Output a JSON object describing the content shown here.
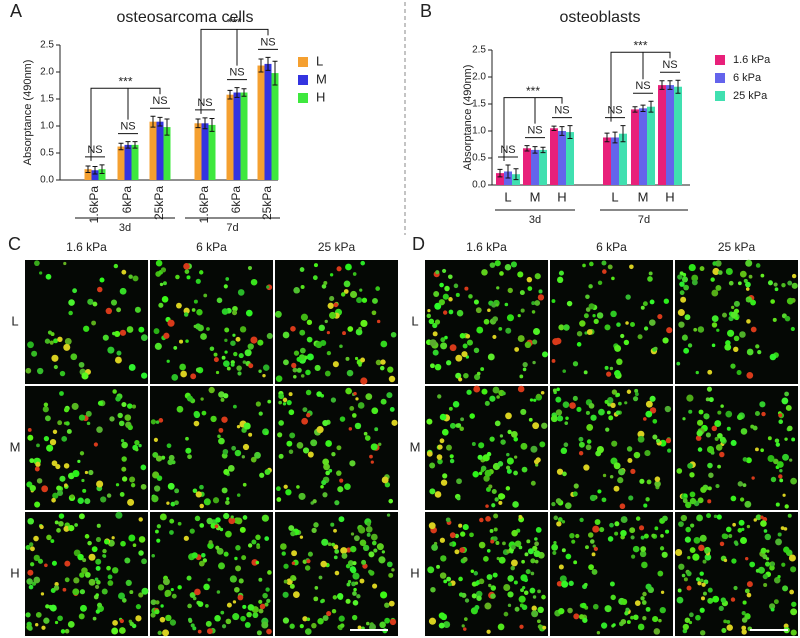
{
  "chart_data": [
    {
      "type": "bar",
      "title": "osteosarcoma cells",
      "y_label": "Absorptance (490nm)",
      "categories": [
        "1.6kPa",
        "6kPa",
        "25kPa",
        "1.6kPa",
        "6kPa",
        "25kPa"
      ],
      "category_color": "#2323c0",
      "group_labels": [
        "3d",
        "7d"
      ],
      "series": [
        {
          "name": "L",
          "color": "#f5a030",
          "values": [
            0.2,
            0.62,
            1.08,
            1.05,
            1.58,
            2.12
          ],
          "errors": [
            0.06,
            0.06,
            0.1,
            0.08,
            0.08,
            0.12
          ]
        },
        {
          "name": "M",
          "color": "#3434e0",
          "values": [
            0.18,
            0.65,
            1.08,
            1.05,
            1.62,
            2.15
          ],
          "errors": [
            0.07,
            0.06,
            0.08,
            0.1,
            0.09,
            0.12
          ]
        },
        {
          "name": "H",
          "color": "#3ee83e",
          "values": [
            0.2,
            0.65,
            0.98,
            1.02,
            1.62,
            1.98
          ],
          "errors": [
            0.08,
            0.06,
            0.15,
            0.12,
            0.07,
            0.22
          ]
        }
      ],
      "legend_text_color": "#e0208a",
      "ylim": [
        0,
        2.5
      ],
      "yticks": [
        {
          "value": 0,
          "label": "0.0"
        },
        0.5,
        {
          "value": 1,
          "label": "1.0"
        },
        1.5,
        {
          "value": 2,
          "label": "2.0"
        },
        2.5
      ],
      "annotations": [
        {
          "text": "NS",
          "at": 0
        },
        {
          "text": "NS",
          "at": 1
        },
        {
          "text": "NS",
          "at": 2
        },
        {
          "text": "NS",
          "at": 3
        },
        {
          "text": "NS",
          "at": 4
        },
        {
          "text": "NS",
          "at": 5
        },
        {
          "text": "***",
          "from": 0,
          "to": 2
        },
        {
          "text": "***",
          "from": 3,
          "to": 5
        }
      ]
    },
    {
      "type": "bar",
      "title": "osteoblasts",
      "y_label": "Absorptance (490nm)",
      "categories": [
        "L",
        "M",
        "H",
        "L",
        "M",
        "H"
      ],
      "category_color": "#e0208a",
      "group_labels": [
        "3d",
        "7d"
      ],
      "series": [
        {
          "name": "1.6 kPa",
          "color": "#e8207a",
          "values": [
            0.22,
            0.68,
            1.05,
            0.88,
            1.4,
            1.85
          ],
          "errors": [
            0.07,
            0.05,
            0.04,
            0.08,
            0.05,
            0.08
          ]
        },
        {
          "name": "6 kPa",
          "color": "#6464ec",
          "values": [
            0.25,
            0.65,
            1.0,
            0.88,
            1.42,
            1.85
          ],
          "errors": [
            0.12,
            0.06,
            0.08,
            0.1,
            0.06,
            0.08
          ]
        },
        {
          "name": "25 kPa",
          "color": "#40e0b0",
          "values": [
            0.2,
            0.65,
            0.98,
            0.95,
            1.45,
            1.82
          ],
          "errors": [
            0.1,
            0.05,
            0.12,
            0.15,
            0.1,
            0.12
          ]
        }
      ],
      "legend_text_color": "#2323c0",
      "ylim": [
        0,
        2.5
      ],
      "yticks": [
        {
          "value": 0,
          "label": "0.0"
        },
        0.5,
        {
          "value": 1,
          "label": "1.0"
        },
        1.5,
        {
          "value": 2,
          "label": "2.0"
        },
        2.5
      ],
      "annotations": [
        {
          "text": "NS",
          "at": 0
        },
        {
          "text": "NS",
          "at": 1
        },
        {
          "text": "NS",
          "at": 2
        },
        {
          "text": "NS",
          "at": 3
        },
        {
          "text": "NS",
          "at": 4
        },
        {
          "text": "NS",
          "at": 5
        },
        {
          "text": "***",
          "from": 0,
          "to": 2
        },
        {
          "text": "***",
          "from": 3,
          "to": 5
        }
      ]
    }
  ],
  "figure": {
    "panel_labels": [
      "A",
      "B",
      "C",
      "D"
    ],
    "grids": [
      {
        "columns": [
          "1.6 kPa",
          "6 kPa",
          "25 kPa"
        ],
        "rows": [
          "L",
          "M",
          "H"
        ]
      },
      {
        "columns": [
          "1.6 kPa",
          "6 kPa",
          "25 kPa"
        ],
        "rows": [
          "L",
          "M",
          "H"
        ]
      }
    ]
  }
}
